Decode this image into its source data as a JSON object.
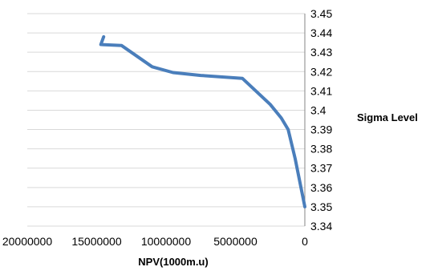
{
  "chart_data": {
    "type": "line",
    "xlabel": "NPV(1000m.u)",
    "ylabel": "Sigma Level",
    "x_reversed": true,
    "xlim": [
      0,
      20000000
    ],
    "x_ticks": [
      20000000,
      15000000,
      10000000,
      5000000,
      0
    ],
    "x_tick_labels": [
      "20000000",
      "15000000",
      "10000000",
      "5000000",
      "0"
    ],
    "ylim": [
      3.34,
      3.45
    ],
    "y_ticks": [
      3.45,
      3.44,
      3.43,
      3.42,
      3.41,
      3.4,
      3.39,
      3.38,
      3.37,
      3.36,
      3.35,
      3.34
    ],
    "y_tick_labels": [
      "3.45",
      "3.44",
      "3.43",
      "3.42",
      "3.41",
      "3.4",
      "3.39",
      "3.38",
      "3.37",
      "3.36",
      "3.35",
      "3.34"
    ],
    "y_axis_position": "right",
    "grid": "horizontal",
    "legend": "none",
    "line_color": "#4a7ebb",
    "series": [
      {
        "points": [
          {
            "x": 0,
            "y": 3.35
          },
          {
            "x": 700000,
            "y": 3.375
          },
          {
            "x": 1200000,
            "y": 3.39
          },
          {
            "x": 1700000,
            "y": 3.396
          },
          {
            "x": 2500000,
            "y": 3.403
          },
          {
            "x": 4500000,
            "y": 3.4165
          },
          {
            "x": 7500000,
            "y": 3.418
          },
          {
            "x": 9500000,
            "y": 3.4195
          },
          {
            "x": 11000000,
            "y": 3.4225
          },
          {
            "x": 13200000,
            "y": 3.4335
          },
          {
            "x": 14700000,
            "y": 3.434
          },
          {
            "x": 14500000,
            "y": 3.438
          }
        ]
      }
    ]
  }
}
